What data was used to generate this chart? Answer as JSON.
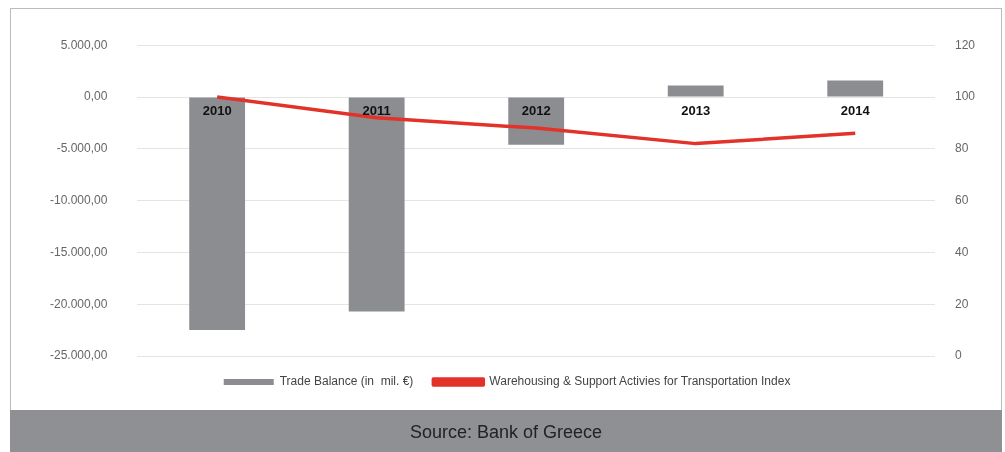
{
  "chart_data": {
    "type": "bar",
    "categories": [
      "2010",
      "2011",
      "2012",
      "2013",
      "2014"
    ],
    "series": [
      {
        "name": "Trade Balance (in  mil. €)",
        "color": "#8c8d91",
        "values": [
          -22500,
          -20700,
          -4600,
          1100,
          1600
        ]
      },
      {
        "name": "Warehousing & Support Activies for Transportation Index",
        "type": "line",
        "axis": "y2",
        "color": "#e2322a",
        "values": [
          100,
          92,
          88,
          82,
          86
        ]
      }
    ],
    "ylim": [
      -25000,
      5000
    ],
    "yticks": [
      {
        "value": 5000,
        "label": "5.000,00"
      },
      {
        "value": 0,
        "label": "0,00"
      },
      {
        "value": -5000,
        "label": "-5.000,00"
      },
      {
        "value": -10000,
        "label": "-10.000,00"
      },
      {
        "value": -15000,
        "label": "-15.000,00"
      },
      {
        "value": -20000,
        "label": "-20.000,00"
      },
      {
        "value": -25000,
        "label": "-25.000,00"
      }
    ],
    "y2lim": [
      0,
      120
    ],
    "y2ticks": [
      0,
      20,
      40,
      60,
      80,
      100,
      120
    ],
    "grid": "y",
    "legend": "bottom",
    "marker": "none",
    "line_style": "solid",
    "annotations": [
      "Source: Bank of Greece"
    ]
  }
}
